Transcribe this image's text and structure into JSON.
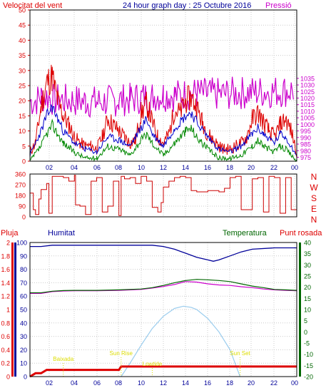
{
  "header": {
    "left_title": "Velocitat del vent",
    "center_title": "24 hour graph day : 25 Octubre 2016",
    "right_title": "Pressió"
  },
  "colors": {
    "wind": "#dd0000",
    "wind_avg": "#0000cc",
    "wind_low": "#008800",
    "pressure": "#cc00cc",
    "direction": "#cc0000",
    "rain": "#dd0000",
    "humidity": "#000099",
    "temperature": "#006600",
    "dewpoint": "#cc00cc",
    "solar": "#99ccee",
    "sun_labels": "#dddd00",
    "grid": "#cccccc",
    "frame": "#000000"
  },
  "chart_data": [
    {
      "type": "line",
      "title": "24 hour graph day : 25 Octubre 2016",
      "xlabel": "",
      "x_ticks": [
        "02",
        "04",
        "06",
        "08",
        "10",
        "12",
        "14",
        "16",
        "18",
        "20",
        "22",
        "00"
      ],
      "xlim": [
        0,
        24
      ],
      "left_axis": {
        "label": "Velocitat del vent",
        "ylim": [
          0,
          50
        ],
        "ticks": [
          0,
          5,
          10,
          15,
          20,
          25,
          30,
          35,
          40,
          45,
          50
        ]
      },
      "right_axis": {
        "label": "Pressió",
        "ylim": [
          972,
          1087
        ],
        "ticks": [
          975,
          980,
          985,
          990,
          995,
          1000,
          1005,
          1010,
          1015,
          1020,
          1025,
          1030,
          1035
        ]
      },
      "series": [
        {
          "name": "",
          "axis": "right",
          "color_key": "pressure",
          "x": [
            0,
            0.5,
            1,
            1.5,
            2,
            3,
            4,
            5,
            6,
            7,
            8,
            9,
            10,
            11,
            12,
            13,
            14,
            15,
            16,
            17,
            18,
            19,
            20,
            21,
            22,
            23,
            23.8
          ],
          "y": [
            1017.5,
            1018,
            1020.5,
            1021.5,
            1019,
            1018.5,
            1018,
            1017.5,
            1017,
            1017.5,
            1018.5,
            1019,
            1020.5,
            1021.5,
            1022.5,
            1022,
            1023,
            1023.5,
            1023,
            1023,
            1023.5,
            1024,
            1024.5,
            1025,
            1025,
            1025.5,
            1026
          ]
        },
        {
          "name": "",
          "axis": "left",
          "color_key": "wind",
          "x": [
            0,
            0.5,
            1,
            1.5,
            2,
            2.5,
            3,
            3.5,
            4,
            4.5,
            5,
            5.5,
            6,
            6.5,
            7,
            7.5,
            8,
            8.5,
            9,
            9.5,
            10,
            10.5,
            11,
            11.5,
            12,
            12.5,
            13,
            13.5,
            14,
            14.5,
            15,
            15.5,
            16,
            16.5,
            17,
            17.5,
            18,
            18.5,
            19,
            19.5,
            20,
            20.5,
            21,
            21.5,
            22,
            22.5,
            23,
            23.5,
            24
          ],
          "y": [
            3,
            6,
            18,
            26,
            28,
            20,
            15,
            12,
            8,
            6,
            5,
            5,
            4,
            8,
            14,
            12,
            10,
            8,
            6,
            7,
            16,
            19,
            13,
            8,
            6,
            9,
            17,
            16,
            20,
            21,
            18,
            13,
            9,
            7,
            5,
            4,
            4,
            5,
            6,
            8,
            14,
            16,
            13,
            10,
            8,
            12,
            14,
            10,
            3
          ]
        },
        {
          "name": "",
          "axis": "left",
          "color_key": "wind_avg",
          "x": [
            0,
            1,
            1.5,
            2,
            2.5,
            3,
            4,
            5,
            6,
            7,
            8,
            9,
            10,
            10.5,
            11,
            12,
            13,
            14,
            14.5,
            15,
            16,
            17,
            18,
            19,
            20,
            20.5,
            21,
            22,
            22.5,
            23,
            24
          ],
          "y": [
            2,
            10,
            15,
            18,
            14,
            10,
            6,
            4,
            3,
            8,
            7,
            5,
            11,
            14,
            9,
            5,
            11,
            15,
            16,
            13,
            8,
            4,
            3,
            5,
            9,
            11,
            9,
            6,
            9,
            8,
            2
          ]
        },
        {
          "name": "",
          "axis": "left",
          "color_key": "wind_low",
          "x": [
            0,
            1,
            1.5,
            2,
            2.5,
            3,
            4,
            5,
            6,
            7,
            8,
            9,
            10,
            10.5,
            11,
            12,
            13,
            14,
            14.5,
            15,
            16,
            17,
            18,
            19,
            20,
            20.5,
            21,
            22,
            22.5,
            23,
            24
          ],
          "y": [
            0,
            5,
            9,
            12,
            9,
            6,
            3,
            1,
            1,
            5,
            4,
            2,
            7,
            9,
            6,
            2,
            6,
            10,
            11,
            8,
            4,
            1,
            1,
            2,
            5,
            7,
            5,
            3,
            5,
            4,
            0
          ]
        }
      ]
    },
    {
      "type": "line",
      "title": "",
      "x_ticks": [
        "02",
        "04",
        "06",
        "08",
        "10",
        "12",
        "14",
        "16",
        "18",
        "20",
        "22",
        "00"
      ],
      "xlim": [
        0,
        24
      ],
      "left_axis": {
        "label": "",
        "ylim": [
          0,
          360
        ],
        "ticks": [
          0,
          90,
          180,
          270,
          360
        ]
      },
      "right_axis": {
        "label": "",
        "compass": [
          "N",
          "W",
          "S",
          "E",
          "N"
        ]
      },
      "series": [
        {
          "name": "",
          "color_key": "direction",
          "x": [
            0,
            0.3,
            0.5,
            0.8,
            1,
            1.5,
            1.7,
            2,
            3,
            3.5,
            4,
            4.1,
            4.5,
            5,
            5.5,
            6,
            6.5,
            7,
            7.5,
            8,
            8.2,
            8.5,
            9,
            9.5,
            10,
            10.5,
            11,
            11.5,
            11.8,
            12,
            12.5,
            13,
            13.5,
            14,
            14.5,
            15,
            16,
            17,
            17.5,
            18,
            18.5,
            19,
            19.5,
            20,
            20.5,
            21,
            21.5,
            22,
            22.5,
            23,
            23.5,
            24
          ],
          "y": [
            200,
            60,
            20,
            150,
            230,
            280,
            30,
            340,
            330,
            300,
            350,
            100,
            90,
            20,
            300,
            330,
            40,
            90,
            300,
            10,
            340,
            320,
            330,
            280,
            340,
            300,
            80,
            40,
            120,
            250,
            300,
            330,
            340,
            330,
            220,
            210,
            220,
            210,
            240,
            330,
            340,
            60,
            60,
            320,
            330,
            40,
            340,
            330,
            30,
            330,
            60,
            300
          ]
        }
      ]
    },
    {
      "type": "line",
      "title": "",
      "x_ticks": [
        "02",
        "04",
        "06",
        "08",
        "10",
        "12",
        "14",
        "16",
        "18",
        "20",
        "22",
        "00"
      ],
      "xlim": [
        0,
        24
      ],
      "axis_labels": {
        "rain": "Pluja",
        "humidity": "Humitat",
        "temperature": "Temperatura",
        "dewpoint": "Punt rosada"
      },
      "left_axis_outer": {
        "label": "Pluja",
        "ylim": [
          0,
          2
        ],
        "ticks": [
          0,
          0.2,
          0.4,
          0.6,
          0.8,
          1,
          1.2,
          1.4,
          1.6,
          1.8,
          2
        ],
        "tick_labels": [
          "0",
          "0.2",
          "0.4",
          "0.6",
          "0.8",
          "1",
          "1.2",
          "1.4",
          "1.6",
          "1.8",
          "2"
        ]
      },
      "left_axis_inner": {
        "label": "Humitat",
        "ylim": [
          0,
          100
        ],
        "ticks": [
          0,
          10,
          20,
          30,
          40,
          50,
          60,
          70,
          80,
          90,
          100
        ],
        "tick_labels": [
          "0",
          "10",
          "20",
          "30",
          "40",
          "50",
          "60",
          "70",
          "80",
          "90",
          "100"
        ]
      },
      "right_axis": {
        "label": "Temperatura",
        "ylim": [
          -20,
          40
        ],
        "ticks": [
          -20,
          -15,
          -10,
          -5,
          0,
          5,
          10,
          15,
          20,
          25,
          30,
          35,
          40
        ],
        "tick_labels": [
          "-20",
          "-15",
          "-10",
          "-5",
          "0",
          "5",
          "10",
          "15",
          "20",
          "25",
          "30",
          "35",
          "40"
        ]
      },
      "series": [
        {
          "name": "",
          "color_key": "humidity",
          "x": [
            0,
            1,
            2,
            4,
            6,
            8,
            10,
            11,
            12,
            13,
            14,
            15,
            16,
            16.5,
            17,
            18,
            19,
            20,
            22,
            24
          ],
          "y": [
            97,
            97,
            98,
            98,
            98,
            98,
            98,
            98,
            97,
            95,
            92,
            89,
            87,
            86,
            87,
            90,
            93,
            95,
            96,
            96
          ]
        },
        {
          "name": "",
          "axis": "right",
          "color_key": "temperature",
          "x": [
            0,
            1,
            2,
            3,
            4,
            6,
            8,
            10,
            11,
            12,
            13,
            14,
            15,
            16,
            17,
            18,
            19,
            20,
            21,
            22,
            23,
            24
          ],
          "y": [
            17.5,
            17.5,
            18.2,
            18.5,
            18.6,
            18.6,
            18.8,
            19.2,
            19.8,
            20.8,
            22,
            23,
            23.5,
            23.3,
            23,
            22.5,
            21.5,
            20.5,
            19.8,
            19,
            18.8,
            18.6
          ]
        },
        {
          "name": "",
          "axis": "right",
          "color_key": "dewpoint",
          "x": [
            0,
            1,
            2,
            3,
            4,
            6,
            8,
            10,
            11,
            12,
            13,
            14,
            15,
            16,
            17,
            18,
            19,
            20,
            21,
            22,
            23,
            24
          ],
          "y": [
            17.2,
            17.2,
            18,
            18.3,
            18.4,
            18.4,
            18.6,
            19,
            19.6,
            20.3,
            21.2,
            22.5,
            22.3,
            21.5,
            21,
            20.8,
            20.2,
            19.8,
            19.2,
            18.8,
            18.6,
            18.4
          ]
        },
        {
          "name": "",
          "axis": "right",
          "color_key": "solar",
          "x": [
            8.2,
            9,
            10,
            11,
            12,
            13,
            13.8,
            14.5,
            15,
            16,
            17,
            18,
            18.9
          ],
          "y": [
            -20,
            -14,
            -6,
            1.5,
            7,
            10.5,
            11.5,
            11,
            10,
            6,
            0,
            -8,
            -20
          ]
        },
        {
          "name": "",
          "axis": "rain",
          "color_key": "rain",
          "x": [
            0,
            0.5,
            1,
            1.5,
            2,
            4,
            6,
            8,
            8.2,
            10,
            12,
            14,
            16,
            18,
            20,
            22,
            24
          ],
          "y": [
            0,
            0.05,
            0.05,
            0.1,
            0.1,
            0.1,
            0.1,
            0.1,
            0.15,
            0.15,
            0.15,
            0.15,
            0.15,
            0.15,
            0.15,
            0.15,
            0.15
          ]
        }
      ],
      "annotations": [
        {
          "text": "Baixada",
          "x": 3
        },
        {
          "text": "Sun Rise",
          "x": 8.2
        },
        {
          "text": "Lowtide",
          "x": 11
        },
        {
          "text": "Sun Set",
          "x": 18.9
        }
      ]
    }
  ]
}
